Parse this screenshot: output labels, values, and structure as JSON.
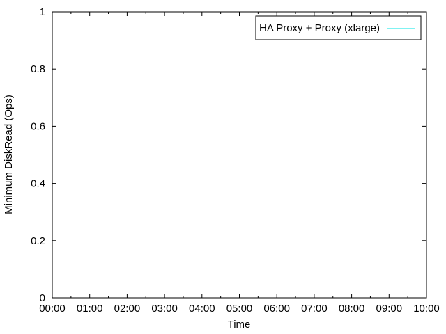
{
  "chart_data": {
    "type": "line",
    "xlabel": "Time",
    "ylabel": "Minimum DiskRead (Ops)",
    "ylim": [
      0,
      1
    ],
    "y_ticks": [
      "0",
      "0.2",
      "0.4",
      "0.6",
      "0.8",
      "1"
    ],
    "y_tick_values": [
      0,
      0.2,
      0.4,
      0.6,
      0.8,
      1
    ],
    "x_ticks": [
      "00:00",
      "01:00",
      "02:00",
      "03:00",
      "04:00",
      "05:00",
      "06:00",
      "07:00",
      "08:00",
      "09:00",
      "10:00"
    ],
    "xlim": [
      "00:00",
      "10:00"
    ],
    "grid": false,
    "legend_position": "top-right",
    "series": [
      {
        "name": "HA Proxy + Proxy (xlarge)",
        "color": "#00e5e5",
        "x": [],
        "y": []
      }
    ]
  }
}
